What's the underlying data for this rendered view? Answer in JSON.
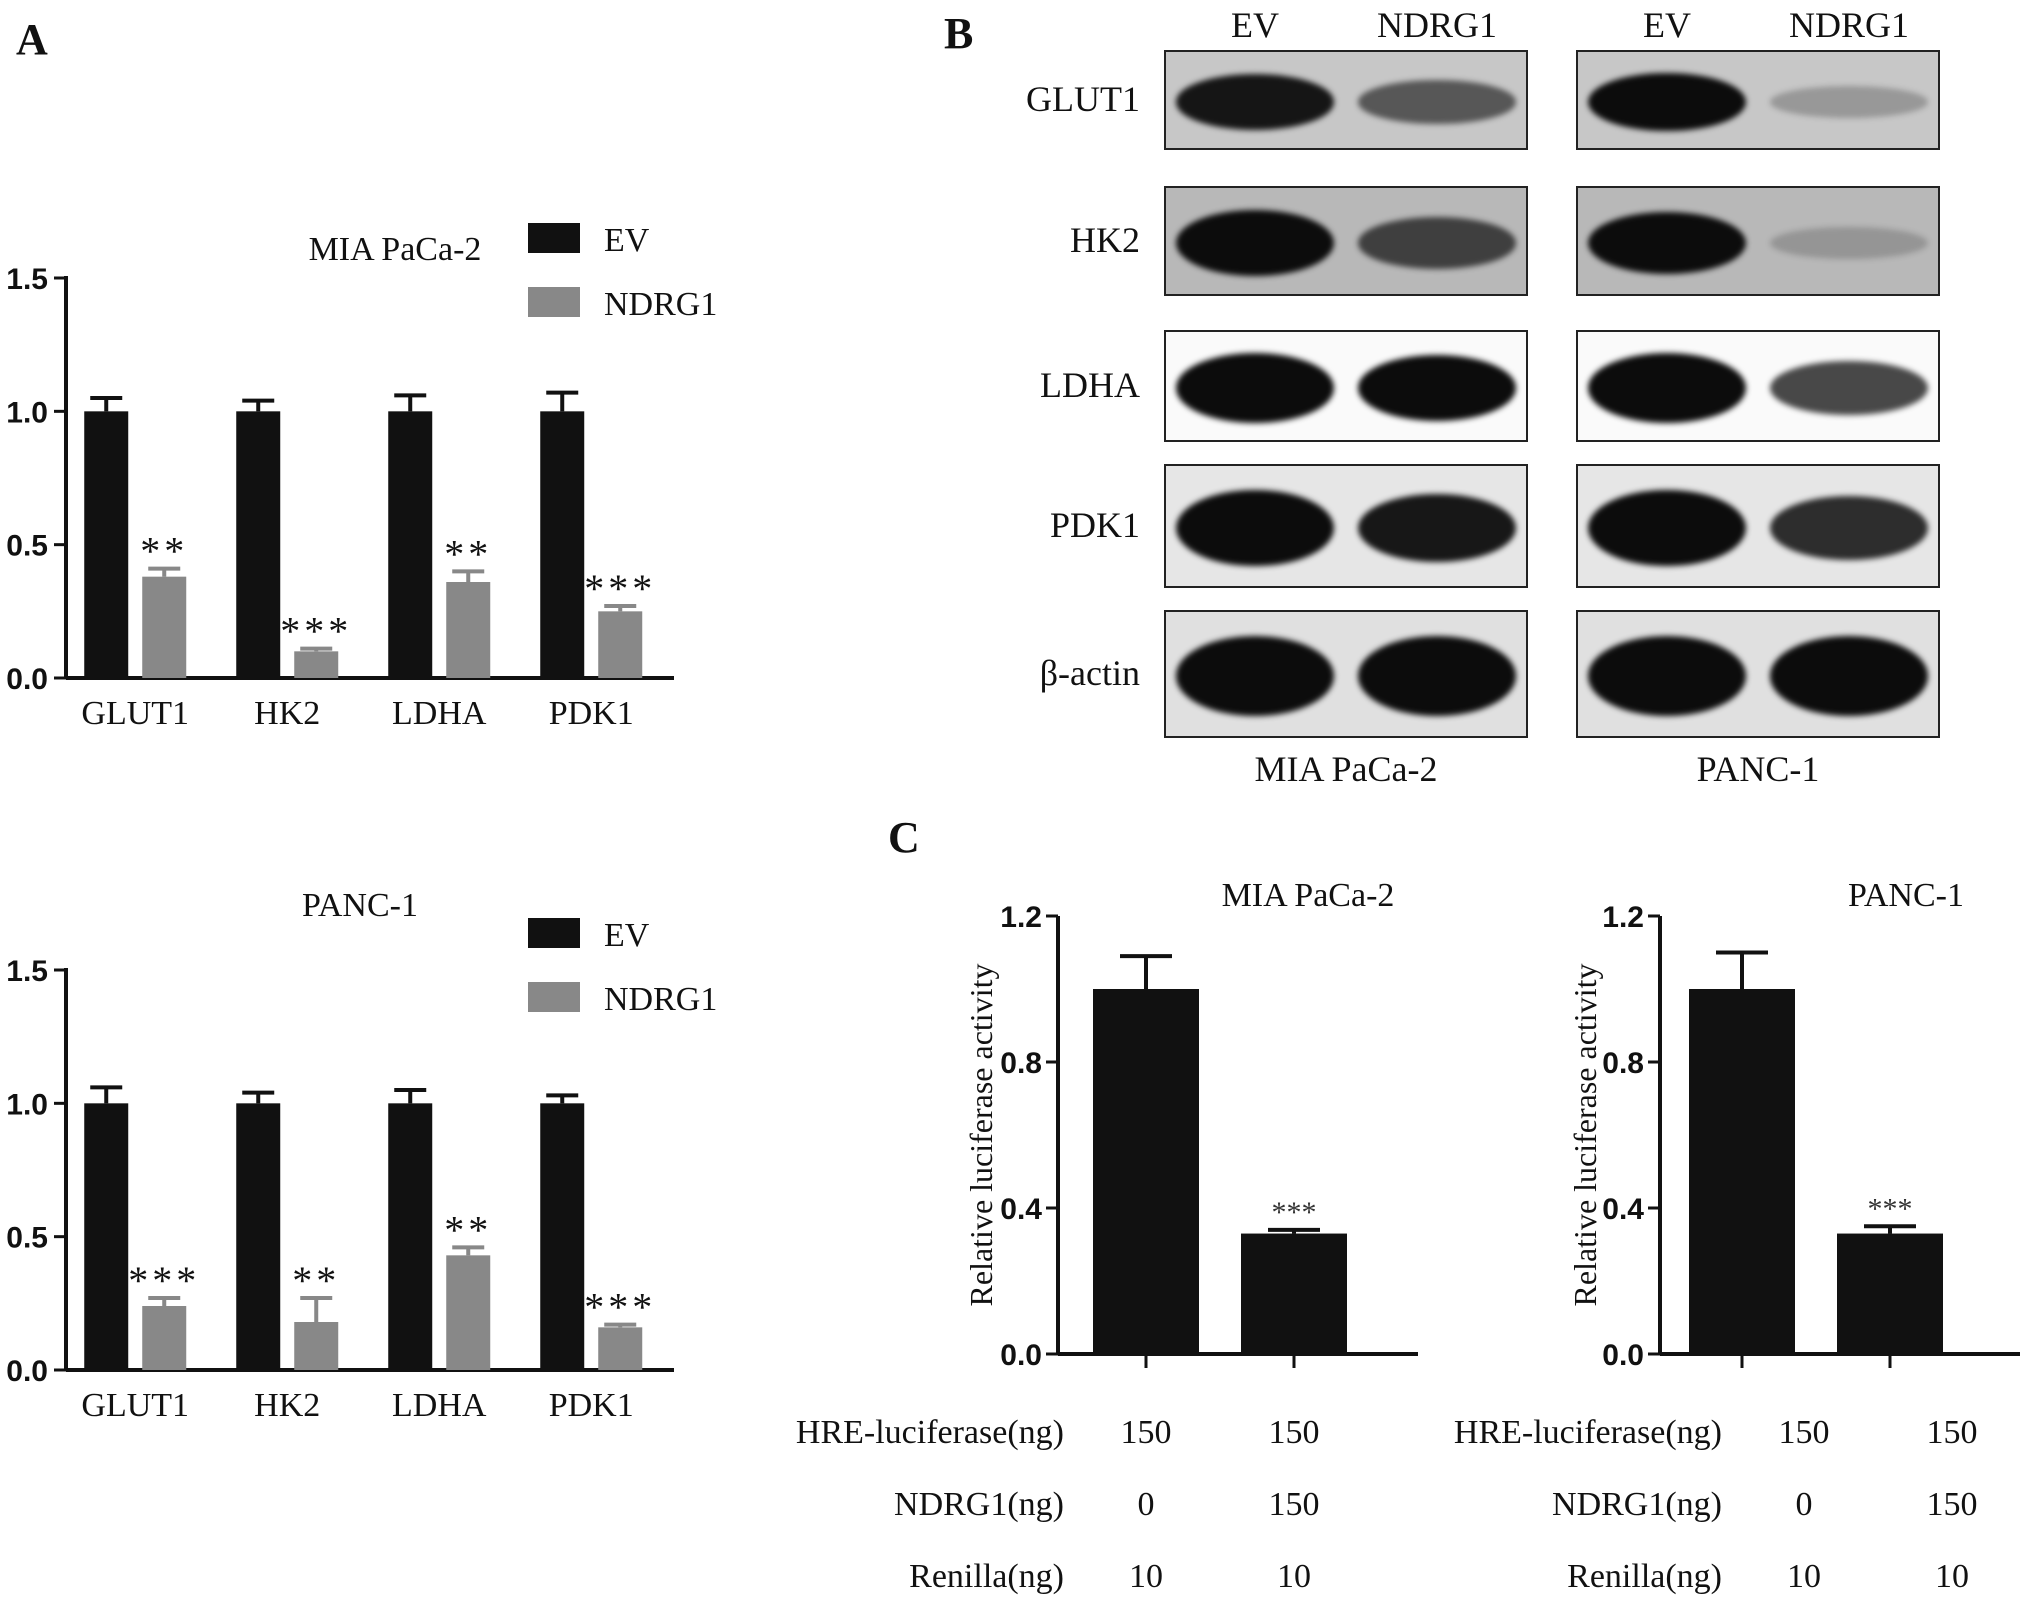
{
  "panels": {
    "a": "A",
    "b": "B",
    "c": "C"
  },
  "chart_data": [
    {
      "id": "A1",
      "type": "bar",
      "title": "MIA PaCa-2",
      "categories": [
        "GLUT1",
        "HK2",
        "LDHA",
        "PDK1"
      ],
      "ylim": [
        0,
        1.5
      ],
      "yticks": [
        "0.0",
        "0.5",
        "1.0",
        "1.5"
      ],
      "legend": {
        "position": "top-right"
      },
      "series": [
        {
          "name": "EV",
          "color": "#111111",
          "values": [
            1.0,
            1.0,
            1.0,
            1.0
          ],
          "err": [
            0.05,
            0.04,
            0.06,
            0.07
          ]
        },
        {
          "name": "NDRG1",
          "color": "#888888",
          "values": [
            0.38,
            0.1,
            0.36,
            0.25
          ],
          "err": [
            0.03,
            0.01,
            0.04,
            0.02
          ],
          "annotations": [
            "**",
            "***",
            "**",
            "***"
          ]
        }
      ]
    },
    {
      "id": "A2",
      "type": "bar",
      "title": "PANC-1",
      "categories": [
        "GLUT1",
        "HK2",
        "LDHA",
        "PDK1"
      ],
      "ylim": [
        0,
        1.5
      ],
      "yticks": [
        "0.0",
        "0.5",
        "1.0",
        "1.5"
      ],
      "legend": {
        "position": "top-right"
      },
      "series": [
        {
          "name": "EV",
          "color": "#111111",
          "values": [
            1.0,
            1.0,
            1.0,
            1.0
          ],
          "err": [
            0.06,
            0.04,
            0.05,
            0.03
          ]
        },
        {
          "name": "NDRG1",
          "color": "#888888",
          "values": [
            0.24,
            0.18,
            0.43,
            0.16
          ],
          "err": [
            0.03,
            0.09,
            0.03,
            0.01
          ],
          "annotations": [
            "***",
            "**",
            "**",
            "***"
          ]
        }
      ]
    },
    {
      "id": "C1",
      "type": "bar",
      "title": "MIA PaCa-2",
      "ylabel": "Relative luciferase activity",
      "ylim": [
        0,
        1.2
      ],
      "yticks": [
        "0.0",
        "0.4",
        "0.8",
        "1.2"
      ],
      "values": [
        1.0,
        0.33
      ],
      "err": [
        0.09,
        0.01
      ],
      "annotations": [
        "",
        "***"
      ],
      "color": "#111111",
      "table": [
        {
          "label": "HRE-luciferase(ng)",
          "values": [
            "150",
            "150"
          ]
        },
        {
          "label": "NDRG1(ng)",
          "values": [
            "0",
            "150"
          ]
        },
        {
          "label": "Renilla(ng)",
          "values": [
            "10",
            "10"
          ]
        }
      ]
    },
    {
      "id": "C2",
      "type": "bar",
      "title": "PANC-1",
      "ylabel": "Relative luciferase activity",
      "ylim": [
        0,
        1.2
      ],
      "yticks": [
        "0.0",
        "0.4",
        "0.8",
        "1.2"
      ],
      "values": [
        1.0,
        0.33
      ],
      "err": [
        0.1,
        0.02
      ],
      "annotations": [
        "",
        "***"
      ],
      "color": "#111111",
      "table": [
        {
          "label": "HRE-luciferase(ng)",
          "values": [
            "150",
            "150"
          ]
        },
        {
          "label": "NDRG1(ng)",
          "values": [
            "0",
            "150"
          ]
        },
        {
          "label": "Renilla(ng)",
          "values": [
            "10",
            "10"
          ]
        }
      ]
    }
  ],
  "western_blot": {
    "lanes": [
      "EV",
      "NDRG1"
    ],
    "cell_lines": [
      "MIA PaCa-2",
      "PANC-1"
    ],
    "proteins": [
      "GLUT1",
      "HK2",
      "LDHA",
      "PDK1",
      "β-actin"
    ],
    "band_intensity": {
      "MIA PaCa-2": [
        [
          0.8,
          0.45
        ],
        [
          0.95,
          0.55
        ],
        [
          1.0,
          0.9
        ],
        [
          1.0,
          0.8
        ],
        [
          1.0,
          1.0
        ]
      ],
      "PANC-1": [
        [
          0.9,
          0.1
        ],
        [
          0.85,
          0.05
        ],
        [
          1.0,
          0.6
        ],
        [
          1.0,
          0.7
        ],
        [
          1.0,
          1.0
        ]
      ]
    }
  }
}
